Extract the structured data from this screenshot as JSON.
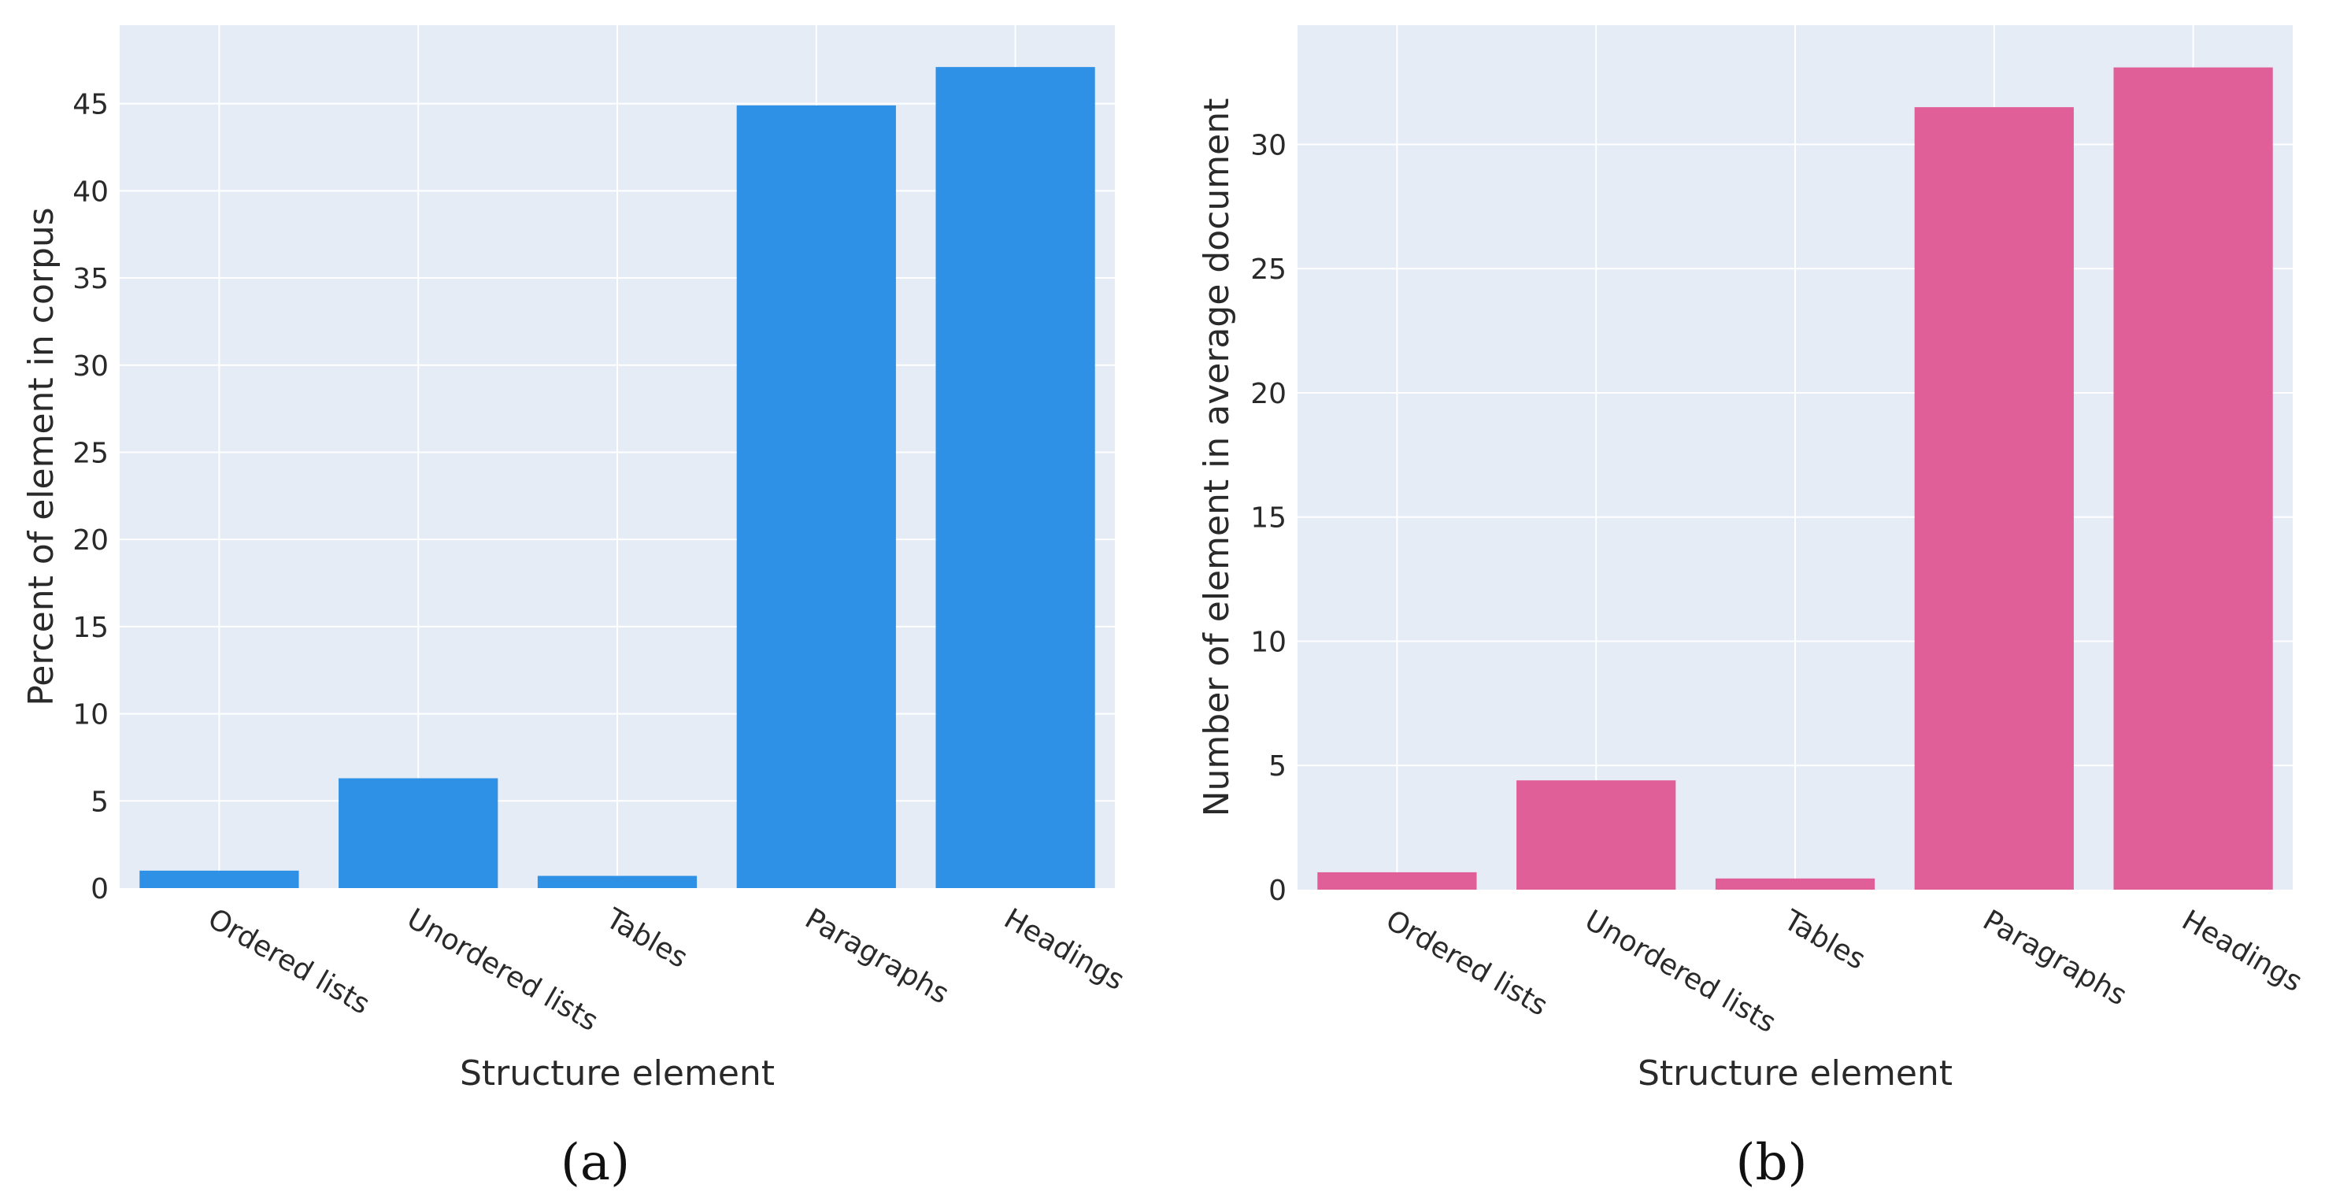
{
  "chart_data": [
    {
      "type": "bar",
      "panel": "(a)",
      "categories": [
        "Ordered lists",
        "Unordered lists",
        "Tables",
        "Paragraphs",
        "Headings"
      ],
      "values": [
        1.0,
        6.3,
        0.7,
        44.9,
        47.1
      ],
      "xlabel": "Structure element",
      "ylabel": "Percent of element in corpus",
      "ylim": [
        0,
        49.5
      ],
      "yticks": [
        0,
        5,
        10,
        15,
        20,
        25,
        30,
        35,
        40,
        45
      ],
      "color": "#2E91E5",
      "background": "#E5ECF6",
      "grid": true
    },
    {
      "type": "bar",
      "panel": "(b)",
      "categories": [
        "Ordered lists",
        "Unordered lists",
        "Tables",
        "Paragraphs",
        "Headings"
      ],
      "values": [
        0.7,
        4.4,
        0.45,
        31.5,
        33.1
      ],
      "xlabel": "Structure element",
      "ylabel": "Number of element in average document",
      "ylim": [
        0,
        34.8
      ],
      "yticks": [
        0,
        5,
        10,
        15,
        20,
        25,
        30
      ],
      "color": "#E15F99",
      "background": "#E5ECF6",
      "grid": true
    }
  ]
}
